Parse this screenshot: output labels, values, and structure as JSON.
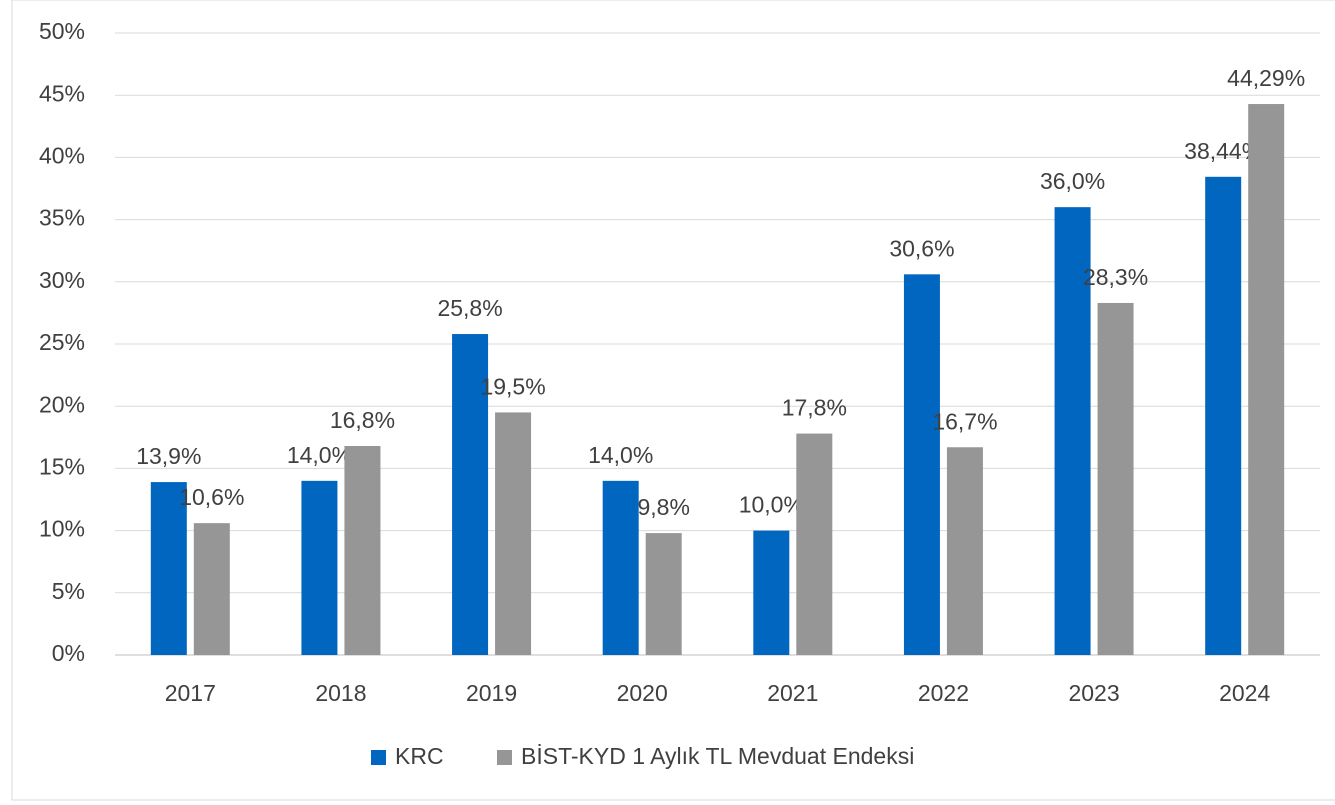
{
  "chart_data": {
    "type": "bar",
    "categories": [
      "2017",
      "2018",
      "2019",
      "2020",
      "2021",
      "2022",
      "2023",
      "2024"
    ],
    "series": [
      {
        "name": "KRC",
        "color": "#0066bf",
        "values": [
          13.9,
          14.0,
          25.8,
          14.0,
          10.0,
          30.6,
          36.0,
          38.44
        ],
        "value_labels": [
          "13,9%",
          "14,0%",
          "25,8%",
          "14,0%",
          "10,0%",
          "30,6%",
          "36,0%",
          "38,44%"
        ]
      },
      {
        "name": "BİST-KYD 1 Aylık TL Mevduat Endeksi",
        "color": "#969696",
        "values": [
          10.6,
          16.8,
          19.5,
          9.8,
          17.8,
          16.7,
          28.3,
          44.29
        ],
        "value_labels": [
          "10,6%",
          "16,8%",
          "19,5%",
          "9,8%",
          "17,8%",
          "16,7%",
          "28,3%",
          "44,29%"
        ]
      }
    ],
    "ylim": [
      0,
      50
    ],
    "yticks": [
      {
        "value": 0,
        "label": "0%"
      },
      {
        "value": 5,
        "label": "5%"
      },
      {
        "value": 10,
        "label": "10%"
      },
      {
        "value": 15,
        "label": "15%"
      },
      {
        "value": 20,
        "label": "20%"
      },
      {
        "value": 25,
        "label": "25%"
      },
      {
        "value": 30,
        "label": "30%"
      },
      {
        "value": 35,
        "label": "35%"
      },
      {
        "value": 40,
        "label": "40%"
      },
      {
        "value": 45,
        "label": "45%"
      },
      {
        "value": 50,
        "label": "50%"
      }
    ],
    "grid": true,
    "legend": "bottom"
  }
}
